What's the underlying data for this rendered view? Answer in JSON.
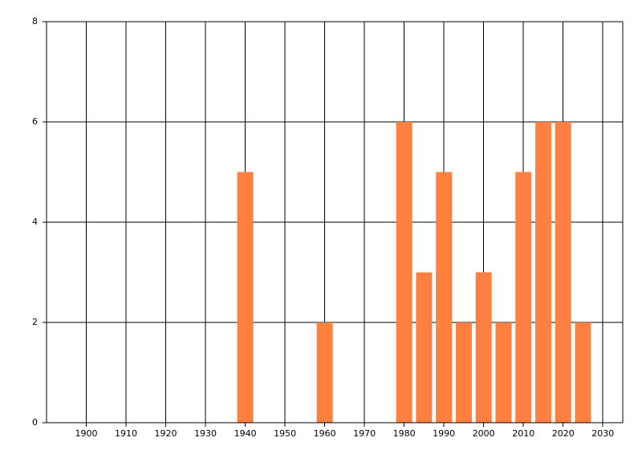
{
  "chart_data": {
    "type": "bar",
    "x": [
      1940,
      1960,
      1980,
      1985,
      1990,
      1995,
      2000,
      2005,
      2010,
      2015,
      2020,
      2025
    ],
    "values": [
      5,
      2,
      6,
      3,
      5,
      2,
      3,
      2,
      5,
      6,
      6,
      2
    ],
    "color": "#ff8040",
    "xlim": [
      1890,
      2035
    ],
    "xticks": [
      1900,
      1910,
      1920,
      1930,
      1940,
      1950,
      1960,
      1970,
      1980,
      1990,
      2000,
      2010,
      2020,
      2030
    ],
    "ylim": [
      0,
      8
    ],
    "yticks": [
      0,
      2,
      4,
      6,
      8
    ],
    "grid": true
  }
}
